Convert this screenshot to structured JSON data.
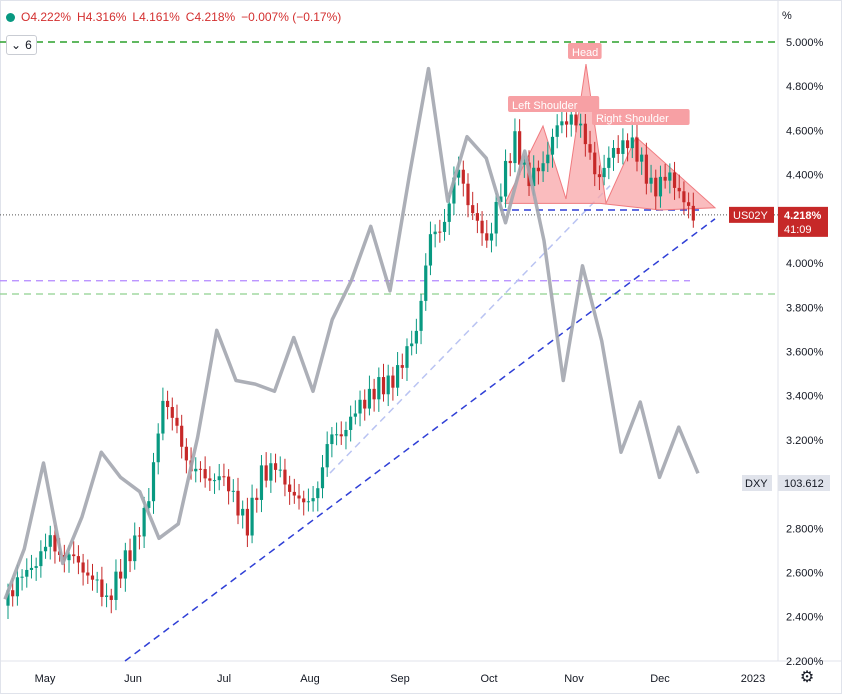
{
  "legend": {
    "open": "O4.222%",
    "high": "H4.316%",
    "low": "L4.161%",
    "close": "C4.218%",
    "change": "−0.007% (−0.17%)",
    "indicator_count": "6"
  },
  "y_axis": {
    "unit": "%",
    "ticks": [
      "5.000%",
      "4.800%",
      "4.600%",
      "4.400%",
      "4.200%",
      "4.000%",
      "3.800%",
      "3.600%",
      "3.400%",
      "3.200%",
      "3.000%",
      "2.800%",
      "2.600%",
      "2.400%",
      "2.200%"
    ]
  },
  "x_axis": {
    "ticks": [
      "May",
      "Jun",
      "Jul",
      "Aug",
      "Sep",
      "Oct",
      "Nov",
      "Dec",
      "2023"
    ]
  },
  "price_tag": {
    "symbol": "US02Y",
    "value": "4.218%",
    "countdown": "41:09",
    "color": "#c62828"
  },
  "dxy_tag": {
    "symbol": "DXY",
    "value": "103.612",
    "color": "#e0e3eb"
  },
  "pattern_labels": {
    "head": "Head",
    "left_shoulder": "Left Shoulder",
    "right_shoulder": "Right Shoulder"
  },
  "colors": {
    "up": "#089981",
    "down": "#c62828",
    "dxy_line": "#a3a6af",
    "pattern_fill": "#f8a5a8",
    "trend_blue": "#2f3fd6"
  },
  "chart_data": {
    "type": "line",
    "title": "",
    "ylabel": "%",
    "ylim": [
      2.2,
      5.0
    ],
    "series": [
      {
        "name": "US02Y",
        "values": [
          2.5,
          2.58,
          2.66,
          2.72,
          2.7,
          2.62,
          2.58,
          2.48,
          2.6,
          2.74,
          2.93,
          3.4,
          3.22,
          3.1,
          3.0,
          3.05,
          2.95,
          2.8,
          3.05,
          3.08,
          2.98,
          2.88,
          3.02,
          3.2,
          3.26,
          3.36,
          3.42,
          3.45,
          3.55,
          3.7,
          4.1,
          4.22,
          4.4,
          4.24,
          4.08,
          4.34,
          4.55,
          4.38,
          4.45,
          4.6,
          4.7,
          4.52,
          4.4,
          4.5,
          4.56,
          4.44,
          4.34,
          4.4,
          4.26,
          4.218
        ]
      },
      {
        "name": "DXY",
        "values": [
          100.1,
          101.5,
          103.9,
          101.1,
          102.4,
          104.2,
          103.5,
          103.1,
          101.8,
          102.2,
          104.6,
          107.6,
          106.2,
          106.1,
          105.9,
          107.4,
          105.9,
          107.9,
          109.0,
          110.5,
          108.7,
          111.9,
          114.9,
          111.2,
          113.0,
          112.4,
          110.6,
          112.6,
          110.1,
          106.2,
          109.4,
          107.3,
          104.2,
          105.6,
          103.5,
          104.9,
          103.612
        ]
      }
    ],
    "reference_levels": {
      "top_dashed": 5.0,
      "purple_dashed": 3.92,
      "green_dashed": 3.86,
      "blue_neckline": 4.24,
      "last_price": 4.218
    }
  }
}
